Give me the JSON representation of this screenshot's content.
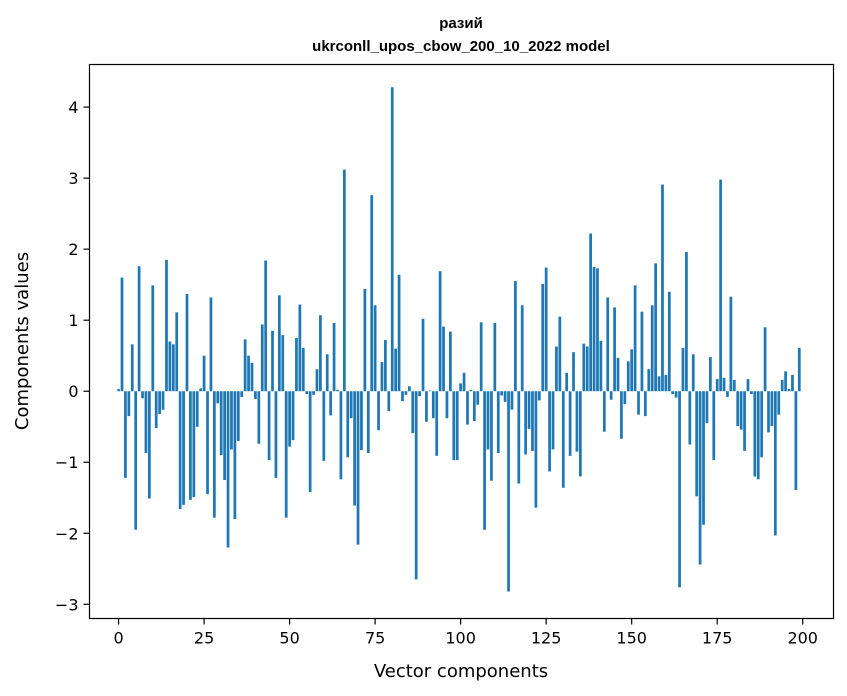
{
  "chart_data": {
    "type": "bar",
    "title": "разий",
    "subtitle": "ukrconll_upos_cbow_200_10_2022 model",
    "xlabel": "Vector components",
    "ylabel": "Components values",
    "xlim": [
      -8.5,
      209
    ],
    "ylim": [
      -3.2,
      4.6
    ],
    "xticks": [
      0,
      25,
      50,
      75,
      100,
      125,
      150,
      175,
      200
    ],
    "yticks": [
      -3,
      -2,
      -1,
      0,
      1,
      2,
      3,
      4
    ],
    "xtick_labels": [
      "0",
      "25",
      "50",
      "75",
      "100",
      "125",
      "150",
      "175",
      "200"
    ],
    "ytick_labels": [
      "−3",
      "−2",
      "−1",
      "0",
      "1",
      "2",
      "3",
      "4"
    ],
    "bar_color": "#1f77b4",
    "grid": false,
    "x": [
      0,
      1,
      2,
      3,
      4,
      5,
      6,
      7,
      8,
      9,
      10,
      11,
      12,
      13,
      14,
      15,
      16,
      17,
      18,
      19,
      20,
      21,
      22,
      23,
      24,
      25,
      26,
      27,
      28,
      29,
      30,
      31,
      32,
      33,
      34,
      35,
      36,
      37,
      38,
      39,
      40,
      41,
      42,
      43,
      44,
      45,
      46,
      47,
      48,
      49,
      50,
      51,
      52,
      53,
      54,
      55,
      56,
      57,
      58,
      59,
      60,
      61,
      62,
      63,
      64,
      65,
      66,
      67,
      68,
      69,
      70,
      71,
      72,
      73,
      74,
      75,
      76,
      77,
      78,
      79,
      80,
      81,
      82,
      83,
      84,
      85,
      86,
      87,
      88,
      89,
      90,
      91,
      92,
      93,
      94,
      95,
      96,
      97,
      98,
      99,
      100,
      101,
      102,
      103,
      104,
      105,
      106,
      107,
      108,
      109,
      110,
      111,
      112,
      113,
      114,
      115,
      116,
      117,
      118,
      119,
      120,
      121,
      122,
      123,
      124,
      125,
      126,
      127,
      128,
      129,
      130,
      131,
      132,
      133,
      134,
      135,
      136,
      137,
      138,
      139,
      140,
      141,
      142,
      143,
      144,
      145,
      146,
      147,
      148,
      149,
      150,
      151,
      152,
      153,
      154,
      155,
      156,
      157,
      158,
      159,
      160,
      161,
      162,
      163,
      164,
      165,
      166,
      167,
      168,
      169,
      170,
      171,
      172,
      173,
      174,
      175,
      176,
      177,
      178,
      179,
      180,
      181,
      182,
      183,
      184,
      185,
      186,
      187,
      188,
      189,
      190,
      191,
      192,
      193,
      194,
      195,
      196,
      197,
      198,
      199
    ],
    "values": [
      0.03,
      1.6,
      -1.22,
      -0.35,
      0.66,
      -1.95,
      1.76,
      -0.1,
      -0.87,
      -1.51,
      1.49,
      -0.52,
      -0.32,
      -0.26,
      1.85,
      0.7,
      0.66,
      1.11,
      -1.66,
      -1.6,
      1.37,
      -1.53,
      -1.49,
      -0.5,
      0.04,
      0.5,
      -1.45,
      1.32,
      -1.78,
      -0.17,
      -0.9,
      -1.25,
      -2.2,
      -0.82,
      -1.8,
      -0.7,
      -0.08,
      0.73,
      0.5,
      0.4,
      -0.11,
      -0.74,
      0.94,
      1.84,
      -0.97,
      0.85,
      -1.22,
      1.35,
      0.79,
      -1.78,
      -0.78,
      -0.69,
      0.75,
      1.22,
      0.61,
      -0.04,
      -1.42,
      -0.05,
      0.31,
      1.07,
      -0.98,
      0.52,
      -0.34,
      0.96,
      0.02,
      -1.24,
      3.12,
      -0.93,
      -0.38,
      -1.61,
      -2.16,
      -0.83,
      1.44,
      -0.87,
      2.76,
      1.21,
      -0.55,
      0.41,
      0.72,
      -0.28,
      4.28,
      0.6,
      1.64,
      -0.14,
      -0.05,
      0.07,
      -0.59,
      -2.65,
      -0.07,
      1.02,
      -0.43,
      0.01,
      -0.38,
      -0.91,
      1.69,
      0.91,
      -0.38,
      0.84,
      -0.97,
      -0.97,
      0.11,
      0.26,
      -0.47,
      0.02,
      -0.42,
      -0.19,
      0.97,
      -1.95,
      -0.82,
      -1.26,
      0.96,
      -0.87,
      -0.06,
      -0.15,
      -2.82,
      -0.26,
      1.55,
      -1.3,
      1.21,
      -0.89,
      -0.53,
      -0.84,
      -1.64,
      -0.13,
      1.51,
      1.74,
      -1.13,
      -0.82,
      0.63,
      1.05,
      -1.36,
      0.26,
      -0.91,
      0.55,
      -0.85,
      -1.2,
      0.67,
      0.63,
      2.22,
      1.75,
      1.73,
      0.71,
      -0.57,
      1.32,
      -0.12,
      1.18,
      0.47,
      -0.67,
      -0.18,
      0.42,
      0.59,
      1.49,
      -0.33,
      1.12,
      -0.35,
      0.31,
      1.21,
      1.8,
      0.21,
      2.91,
      0.23,
      1.4,
      -0.04,
      -0.09,
      -2.76,
      0.61,
      1.96,
      -0.75,
      0.52,
      -1.48,
      -2.44,
      -1.88,
      -0.45,
      0.48,
      -0.97,
      0.17,
      2.98,
      0.19,
      -0.08,
      1.33,
      0.16,
      -0.49,
      -0.54,
      -0.84,
      0.17,
      -0.04,
      -1.2,
      -1.24,
      -0.93,
      0.9,
      -0.58,
      -0.49,
      -2.03,
      -0.33,
      0.16,
      0.28,
      0.03,
      0.23,
      -1.39,
      0.61
    ]
  }
}
